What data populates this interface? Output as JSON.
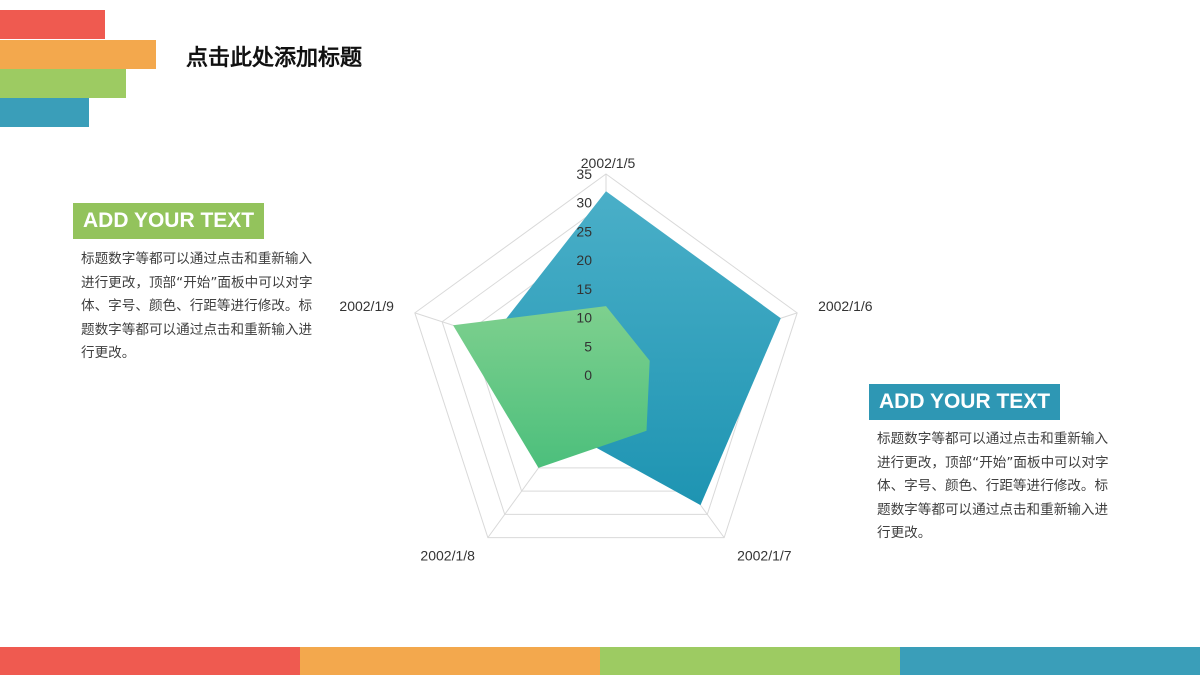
{
  "header": {
    "title": "点击此处添加标题"
  },
  "colors": {
    "red": "#EF5A50",
    "orange": "#F3A84D",
    "green": "#9DCB62",
    "blue": "#3A9EB9",
    "title_green_badge": "#93C35C",
    "title_blue_badge": "#2E97B4"
  },
  "left_panel": {
    "heading": "ADD YOUR TEXT",
    "body": "标题数字等都可以通过点击和重新输入进行更改，顶部“开始”面板中可以对字体、字号、颜色、行距等进行修改。标题数字等都可以通过点击和重新输入进行更改。"
  },
  "right_panel": {
    "heading": "ADD YOUR TEXT",
    "body": "标题数字等都可以通过点击和重新输入进行更改，顶部“开始”面板中可以对字体、字号、颜色、行距等进行修改。标题数字等都可以通过点击和重新输入进行更改。"
  },
  "chart_data": {
    "type": "radar",
    "categories": [
      "2002/1/5",
      "2002/1/6",
      "2002/1/7",
      "2002/1/8",
      "2002/1/9"
    ],
    "radial_ticks": [
      "0",
      "5",
      "10",
      "15",
      "20",
      "25",
      "30",
      "35"
    ],
    "rlim": [
      0,
      35
    ],
    "grid": true,
    "series": [
      {
        "values": [
          32,
          32,
          28,
          12,
          21
        ],
        "color": "#2A9AB8"
      },
      {
        "values": [
          12,
          8,
          12,
          20,
          28
        ],
        "color": "#5DC78A"
      }
    ]
  }
}
